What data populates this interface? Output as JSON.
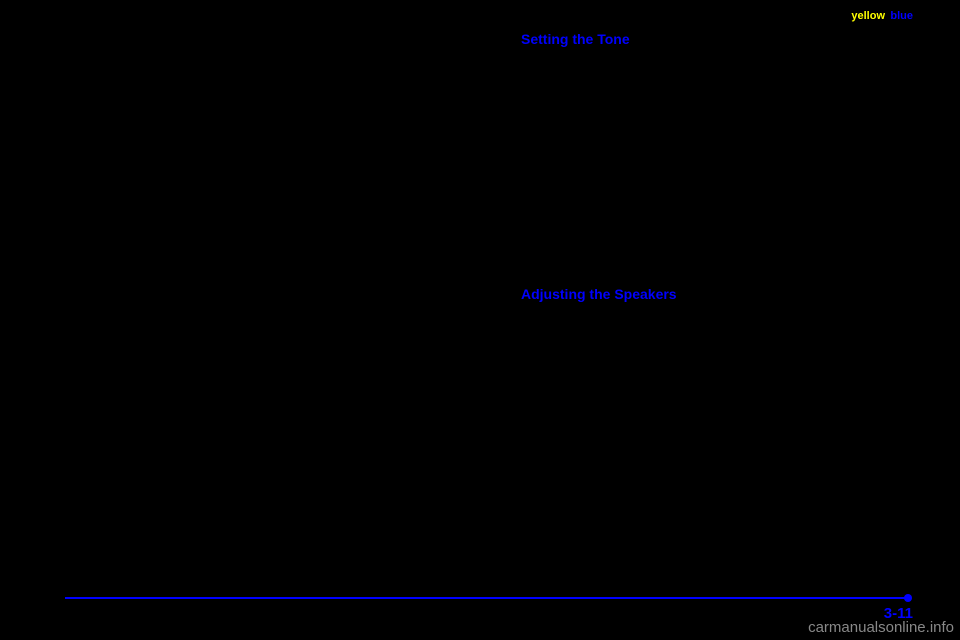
{
  "header": {
    "yellow": "yellow",
    "blue": "blue"
  },
  "headings": {
    "h1": "Setting the Tone",
    "h2": "Adjusting the Speakers"
  },
  "pageNumber": "3-11",
  "watermark": "carmanualsonline.info",
  "colors": {
    "background": "#000000",
    "yellow": "#ffff00",
    "blue": "#0000ff",
    "watermark": "#888888"
  }
}
